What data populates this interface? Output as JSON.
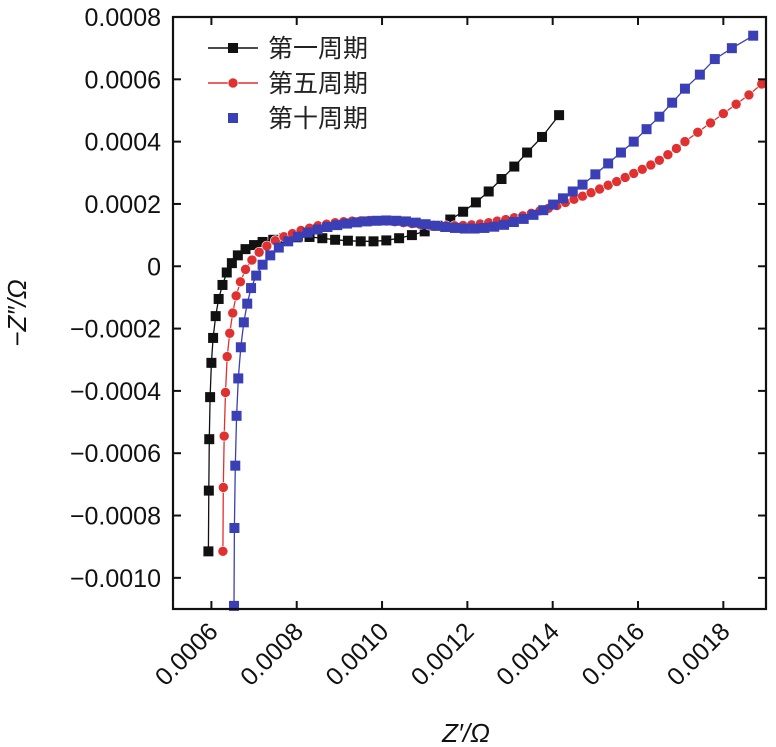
{
  "chart_data": {
    "type": "scatter",
    "title": "",
    "xlabel": "Z′/Ω",
    "ylabel": "−Z″/Ω",
    "xlim": [
      0.00051,
      0.0019
    ],
    "ylim": [
      -0.0011,
      0.0008
    ],
    "x_ticks": [
      0.0006,
      0.0008,
      0.001,
      0.0012,
      0.0014,
      0.0016,
      0.0018
    ],
    "x_tick_labels": [
      "0.0006",
      "0.0008",
      "0.0010",
      "0.0012",
      "0.0014",
      "0.0016",
      "0.0018"
    ],
    "y_ticks": [
      -0.001,
      -0.0008,
      -0.0006,
      -0.0004,
      -0.0002,
      0,
      0.0002,
      0.0004,
      0.0006,
      0.0008
    ],
    "y_tick_labels": [
      "−0.0010",
      "−0.0008",
      "−0.0006",
      "−0.0004",
      "−0.0002",
      "0",
      "0.0002",
      "0.0004",
      "0.0006",
      "0.0008"
    ],
    "legend_position": "top-left",
    "series": [
      {
        "name": "第一周期",
        "color": "#111111",
        "marker": "square",
        "x": [
          0.000593,
          0.000594,
          0.000595,
          0.000597,
          0.0006,
          0.000604,
          0.00061,
          0.000617,
          0.000626,
          0.000636,
          0.000648,
          0.000662,
          0.00068,
          0.0007,
          0.00072,
          0.000745,
          0.00077,
          0.0008,
          0.00083,
          0.00086,
          0.00089,
          0.00092,
          0.00095,
          0.00098,
          0.00101,
          0.00104,
          0.00107,
          0.0011,
          0.00113,
          0.00116,
          0.00119,
          0.00122,
          0.00125,
          0.00128,
          0.00131,
          0.00134,
          0.001375,
          0.001415
        ],
        "y": [
          -0.000915,
          -0.00072,
          -0.000555,
          -0.00042,
          -0.00031,
          -0.00023,
          -0.00016,
          -0.000105,
          -6e-05,
          -2e-05,
          1e-05,
          3.5e-05,
          5.5e-05,
          6.8e-05,
          7.8e-05,
          8.5e-05,
          9e-05,
          9.3e-05,
          9.4e-05,
          9e-05,
          8.5e-05,
          8.2e-05,
          8e-05,
          8e-05,
          8.3e-05,
          9e-05,
          0.0001,
          0.000112,
          0.00013,
          0.00015,
          0.000175,
          0.000205,
          0.00024,
          0.00028,
          0.00032,
          0.000365,
          0.000415,
          0.000485
        ]
      },
      {
        "name": "第五周期",
        "color": "#e03030",
        "marker": "circle",
        "x": [
          0.000627,
          0.000628,
          0.00063,
          0.000633,
          0.000637,
          0.000643,
          0.00065,
          0.000658,
          0.000668,
          0.00068,
          0.000695,
          0.000712,
          0.00073,
          0.00075,
          0.00077,
          0.00079,
          0.00081,
          0.00083,
          0.00085,
          0.00087,
          0.00089,
          0.00091,
          0.00093,
          0.00095,
          0.00097,
          0.00099,
          0.00101,
          0.00103,
          0.00105,
          0.00107,
          0.00109,
          0.00111,
          0.00113,
          0.00115,
          0.00117,
          0.00119,
          0.00121,
          0.00123,
          0.00125,
          0.00127,
          0.00129,
          0.00131,
          0.00133,
          0.00135,
          0.00137,
          0.00139,
          0.00141,
          0.00143,
          0.00145,
          0.00147,
          0.00149,
          0.00151,
          0.00153,
          0.00155,
          0.00157,
          0.00159,
          0.00161,
          0.00163,
          0.00165,
          0.00167,
          0.00169,
          0.00171,
          0.00174,
          0.00177,
          0.0018,
          0.00183,
          0.00186,
          0.00189
        ],
        "y": [
          -0.000915,
          -0.00071,
          -0.000545,
          -0.000405,
          -0.00029,
          -0.000215,
          -0.00015,
          -9.5e-05,
          -5e-05,
          -1e-05,
          2e-05,
          4.5e-05,
          6.5e-05,
          8.2e-05,
          9.5e-05,
          0.000105,
          0.000115,
          0.000122,
          0.00013,
          0.000135,
          0.00014,
          0.000143,
          0.000145,
          0.000146,
          0.000147,
          0.000146,
          0.000145,
          0.000143,
          0.00014,
          0.000137,
          0.000134,
          0.000132,
          0.000131,
          0.00013,
          0.00013,
          0.000131,
          0.000133,
          0.000136,
          0.00014,
          0.000145,
          0.00015,
          0.000156,
          0.000162,
          0.00017,
          0.000178,
          0.000186,
          0.000195,
          0.000205,
          0.000215,
          0.000225,
          0.000236,
          0.000248,
          0.00026,
          0.000272,
          0.000285,
          0.000298,
          0.000311,
          0.000325,
          0.00034,
          0.000358,
          0.000378,
          0.0004,
          0.00043,
          0.00046,
          0.00049,
          0.00052,
          0.00055,
          0.000585
        ]
      },
      {
        "name": "第十周期",
        "color": "#3a3fb5",
        "marker": "square",
        "x": [
          0.000653,
          0.000654,
          0.000656,
          0.000659,
          0.000663,
          0.000669,
          0.000676,
          0.000684,
          0.000693,
          0.000705,
          0.00072,
          0.000738,
          0.000758,
          0.00078,
          0.000803,
          0.000826,
          0.000849,
          0.000872,
          0.000895,
          0.000918,
          0.000941,
          0.000964,
          0.000987,
          0.00101,
          0.001033,
          0.001056,
          0.001079,
          0.001102,
          0.001125,
          0.001148,
          0.001171,
          0.001194,
          0.001217,
          0.00124,
          0.001263,
          0.001286,
          0.001309,
          0.001332,
          0.001355,
          0.001378,
          0.001401,
          0.001424,
          0.001447,
          0.00147,
          0.0015,
          0.00153,
          0.00156,
          0.00159,
          0.00162,
          0.00165,
          0.00168,
          0.00171,
          0.001745,
          0.00178,
          0.00182,
          0.00187
        ],
        "y": [
          -0.00109,
          -0.00084,
          -0.00064,
          -0.00048,
          -0.00036,
          -0.00026,
          -0.00018,
          -0.00012,
          -7e-05,
          -3e-05,
          5e-06,
          3.5e-05,
          6e-05,
          8e-05,
          9.5e-05,
          0.000108,
          0.000118,
          0.000126,
          0.000132,
          0.000137,
          0.000141,
          0.000144,
          0.000146,
          0.000147,
          0.000146,
          0.000144,
          0.00014,
          0.000135,
          0.00013,
          0.000126,
          0.000123,
          0.000121,
          0.000121,
          0.000123,
          0.000127,
          0.000133,
          0.000142,
          0.000152,
          0.000165,
          0.00018,
          0.000198,
          0.000218,
          0.00024,
          0.000262,
          0.000295,
          0.00033,
          0.000365,
          0.0004,
          0.00044,
          0.00048,
          0.000525,
          0.00057,
          0.000615,
          0.000665,
          0.0007,
          0.00074
        ]
      }
    ]
  }
}
